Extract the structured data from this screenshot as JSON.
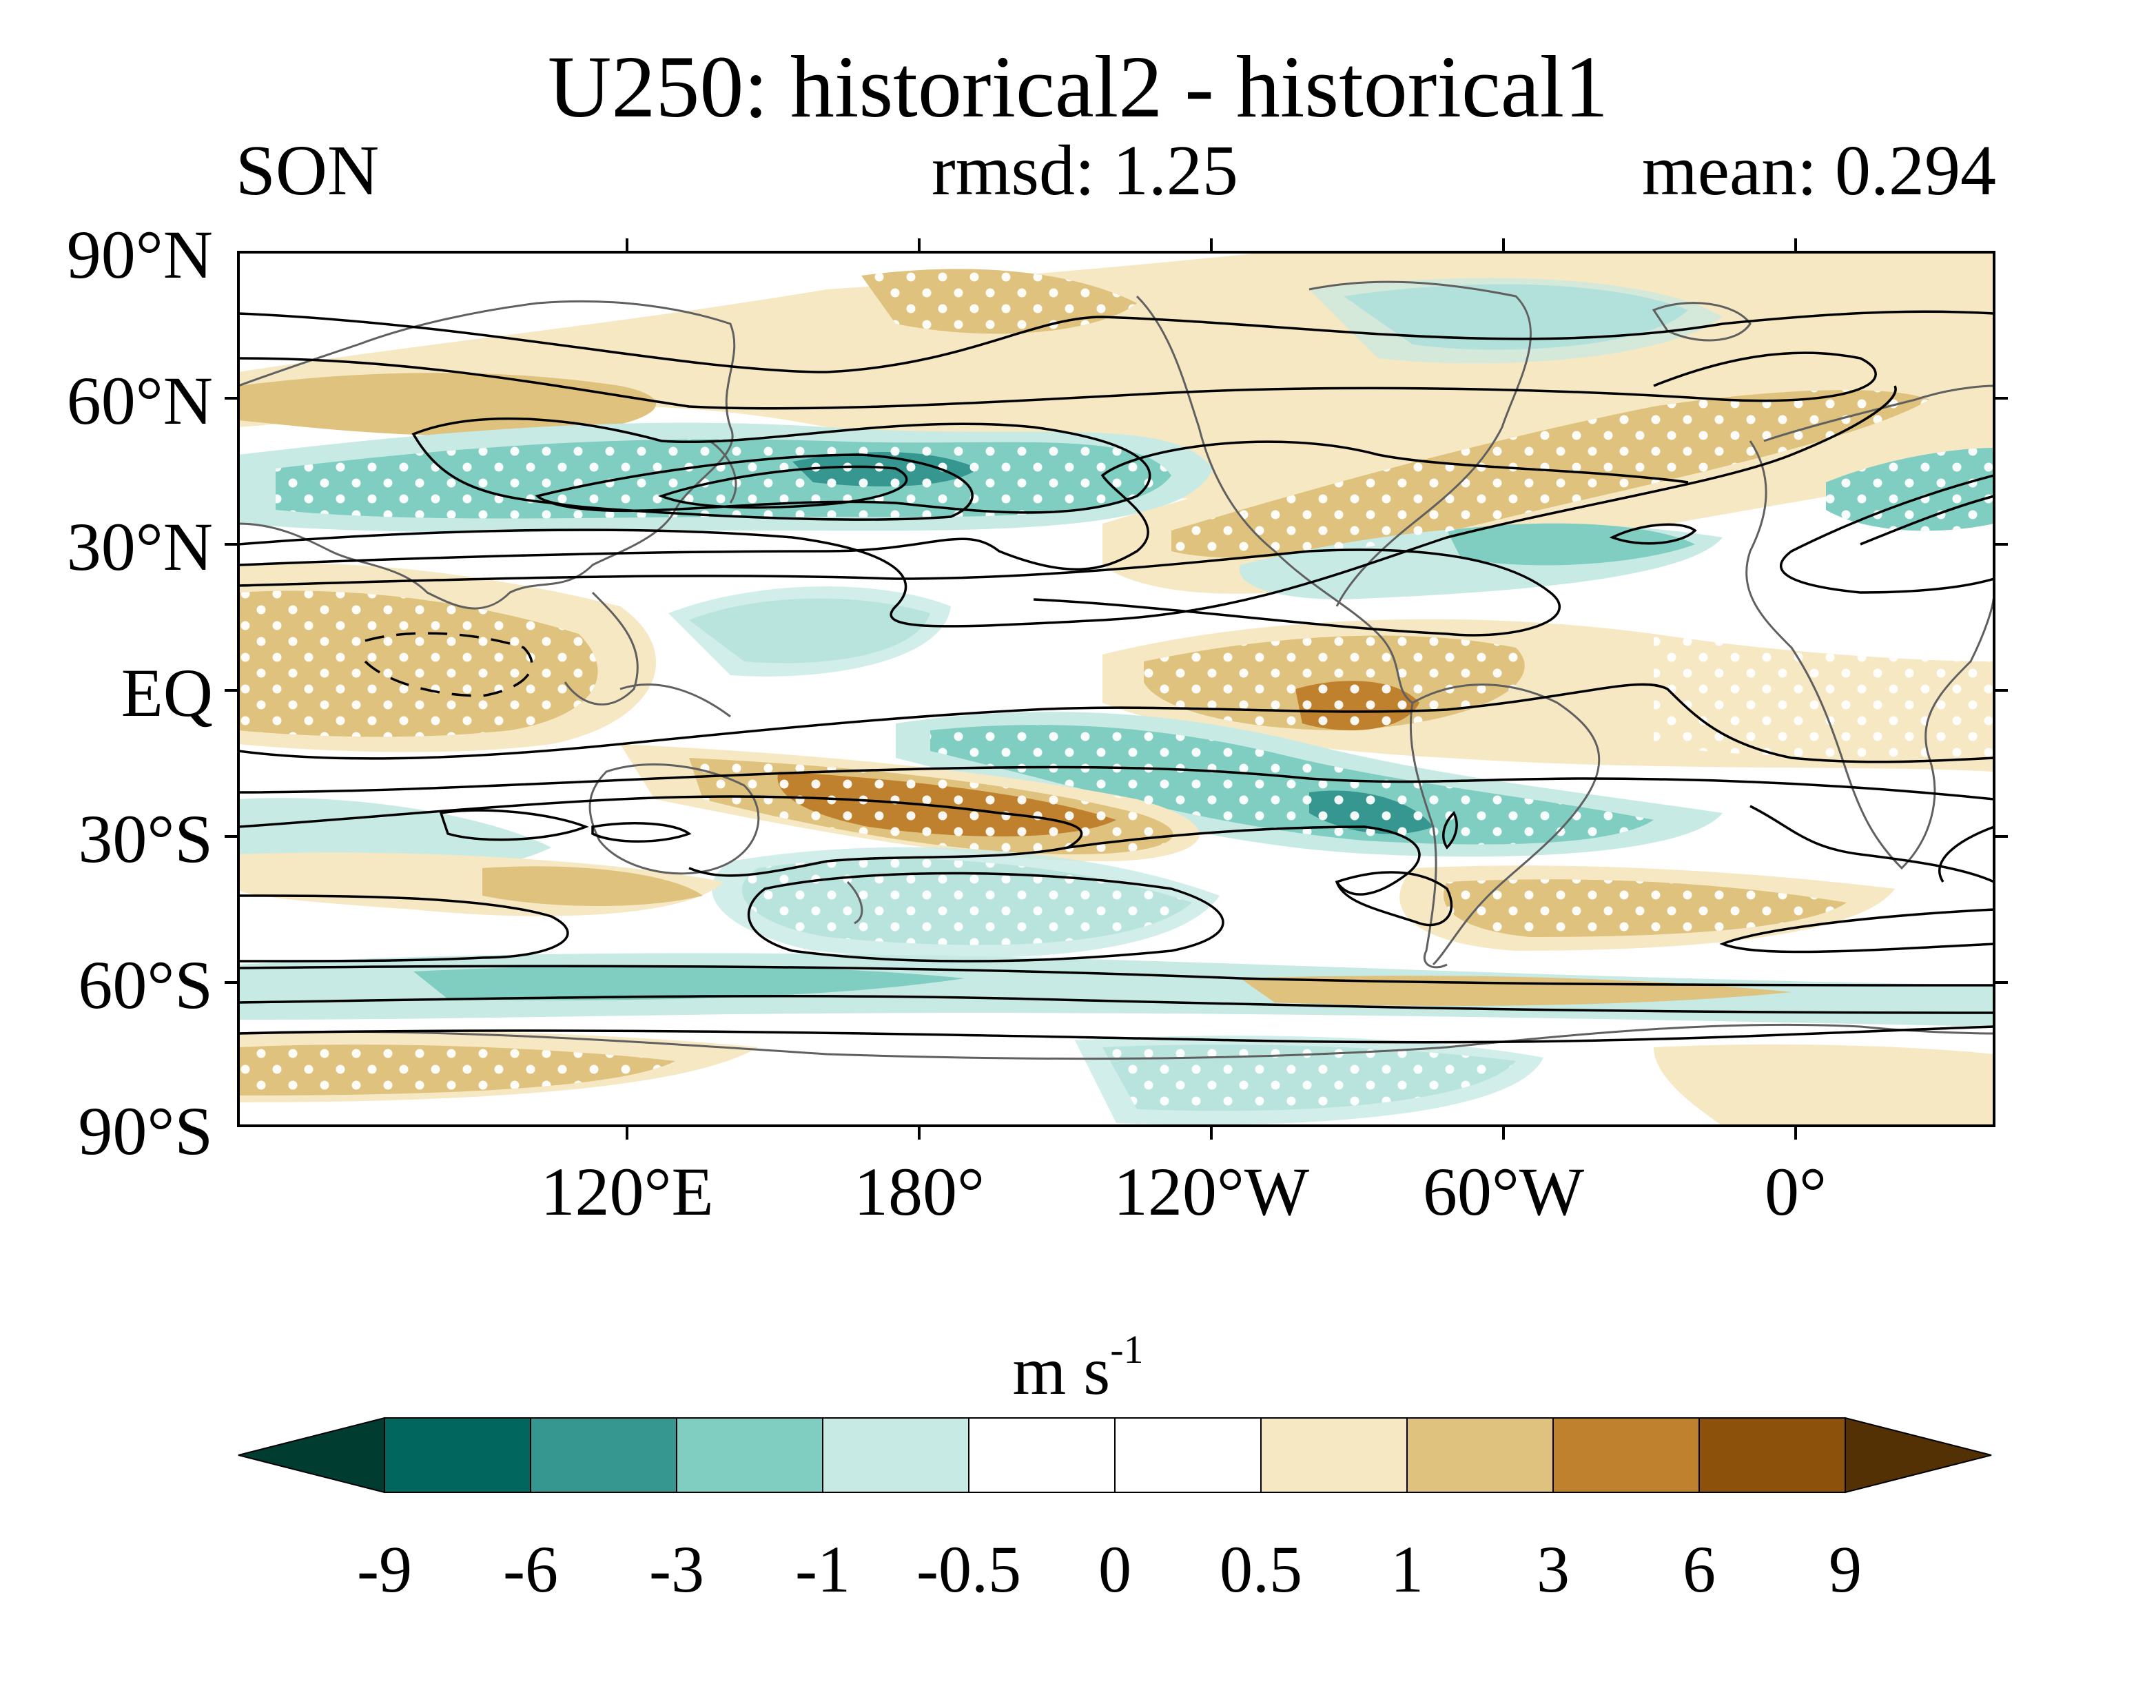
{
  "title": "U250: historical2 - historical1",
  "season": "SON",
  "rmsd_text": "rmsd: 1.25",
  "mean_text": "mean: 0.294",
  "lat_labels": [
    "90°N",
    "60°N",
    "30°N",
    "EQ",
    "30°S",
    "60°S",
    "90°S"
  ],
  "lon_labels": [
    "120°E",
    "180°",
    "120°W",
    "60°W",
    "0°"
  ],
  "colorbar": {
    "unit_main": "m s",
    "unit_exp": "-1",
    "tick_labels": [
      "-9",
      "-6",
      "-3",
      "-1",
      "-0.5",
      "0",
      "0.5",
      "1",
      "3",
      "6",
      "9"
    ],
    "colors": [
      "#01665e",
      "#35978f",
      "#80cdc1",
      "#c7eae5",
      "#ffffff",
      "#ffffff",
      "#f6e8c3",
      "#dfc27d",
      "#bf812d",
      "#8c510a"
    ],
    "under_color": "#003c30",
    "over_color": "#543005"
  },
  "chart_data": {
    "type": "heatmap",
    "variable": "U250",
    "season": "SON",
    "rmsd": 1.25,
    "mean": 0.294,
    "projection": "cylindrical equidistant",
    "lon_range": [
      40,
      400
    ],
    "lat_range": [
      -90,
      90
    ],
    "levels": [
      -9,
      -6,
      -3,
      -1,
      -0.5,
      0,
      0.5,
      1,
      3,
      6,
      9
    ],
    "anomaly_regions": [
      {
        "lon": 175,
        "lat": 44,
        "value": -6
      },
      {
        "lon": 130,
        "lat": 42,
        "value": -3
      },
      {
        "lon": 250,
        "lat": -27,
        "value": -6
      },
      {
        "lon": 260,
        "lat": 70,
        "value": -3
      },
      {
        "lon": 165,
        "lat": 13,
        "value": -3
      },
      {
        "lon": 200,
        "lat": -7,
        "value": -3
      },
      {
        "lon": 180,
        "lat": -47,
        "value": -3
      },
      {
        "lon": 280,
        "lat": -75,
        "value": -3
      },
      {
        "lon": 60,
        "lat": 45,
        "value": -3
      },
      {
        "lon": 385,
        "lat": 40,
        "value": -3
      },
      {
        "lon": 275,
        "lat": -3,
        "value": 6
      },
      {
        "lon": 195,
        "lat": -28,
        "value": 6
      },
      {
        "lon": 80,
        "lat": 5,
        "value": 1
      },
      {
        "lon": 180,
        "lat": 72,
        "value": 1
      },
      {
        "lon": 310,
        "lat": 52,
        "value": 1
      },
      {
        "lon": 100,
        "lat": -78,
        "value": 1
      },
      {
        "lon": 320,
        "lat": -45,
        "value": 1
      },
      {
        "lon": 210,
        "lat": 35,
        "value": 1
      }
    ],
    "hatching": "stippling (white dots) marks significant differences",
    "contours": "black lines show climatological U250; dashed = negative"
  }
}
